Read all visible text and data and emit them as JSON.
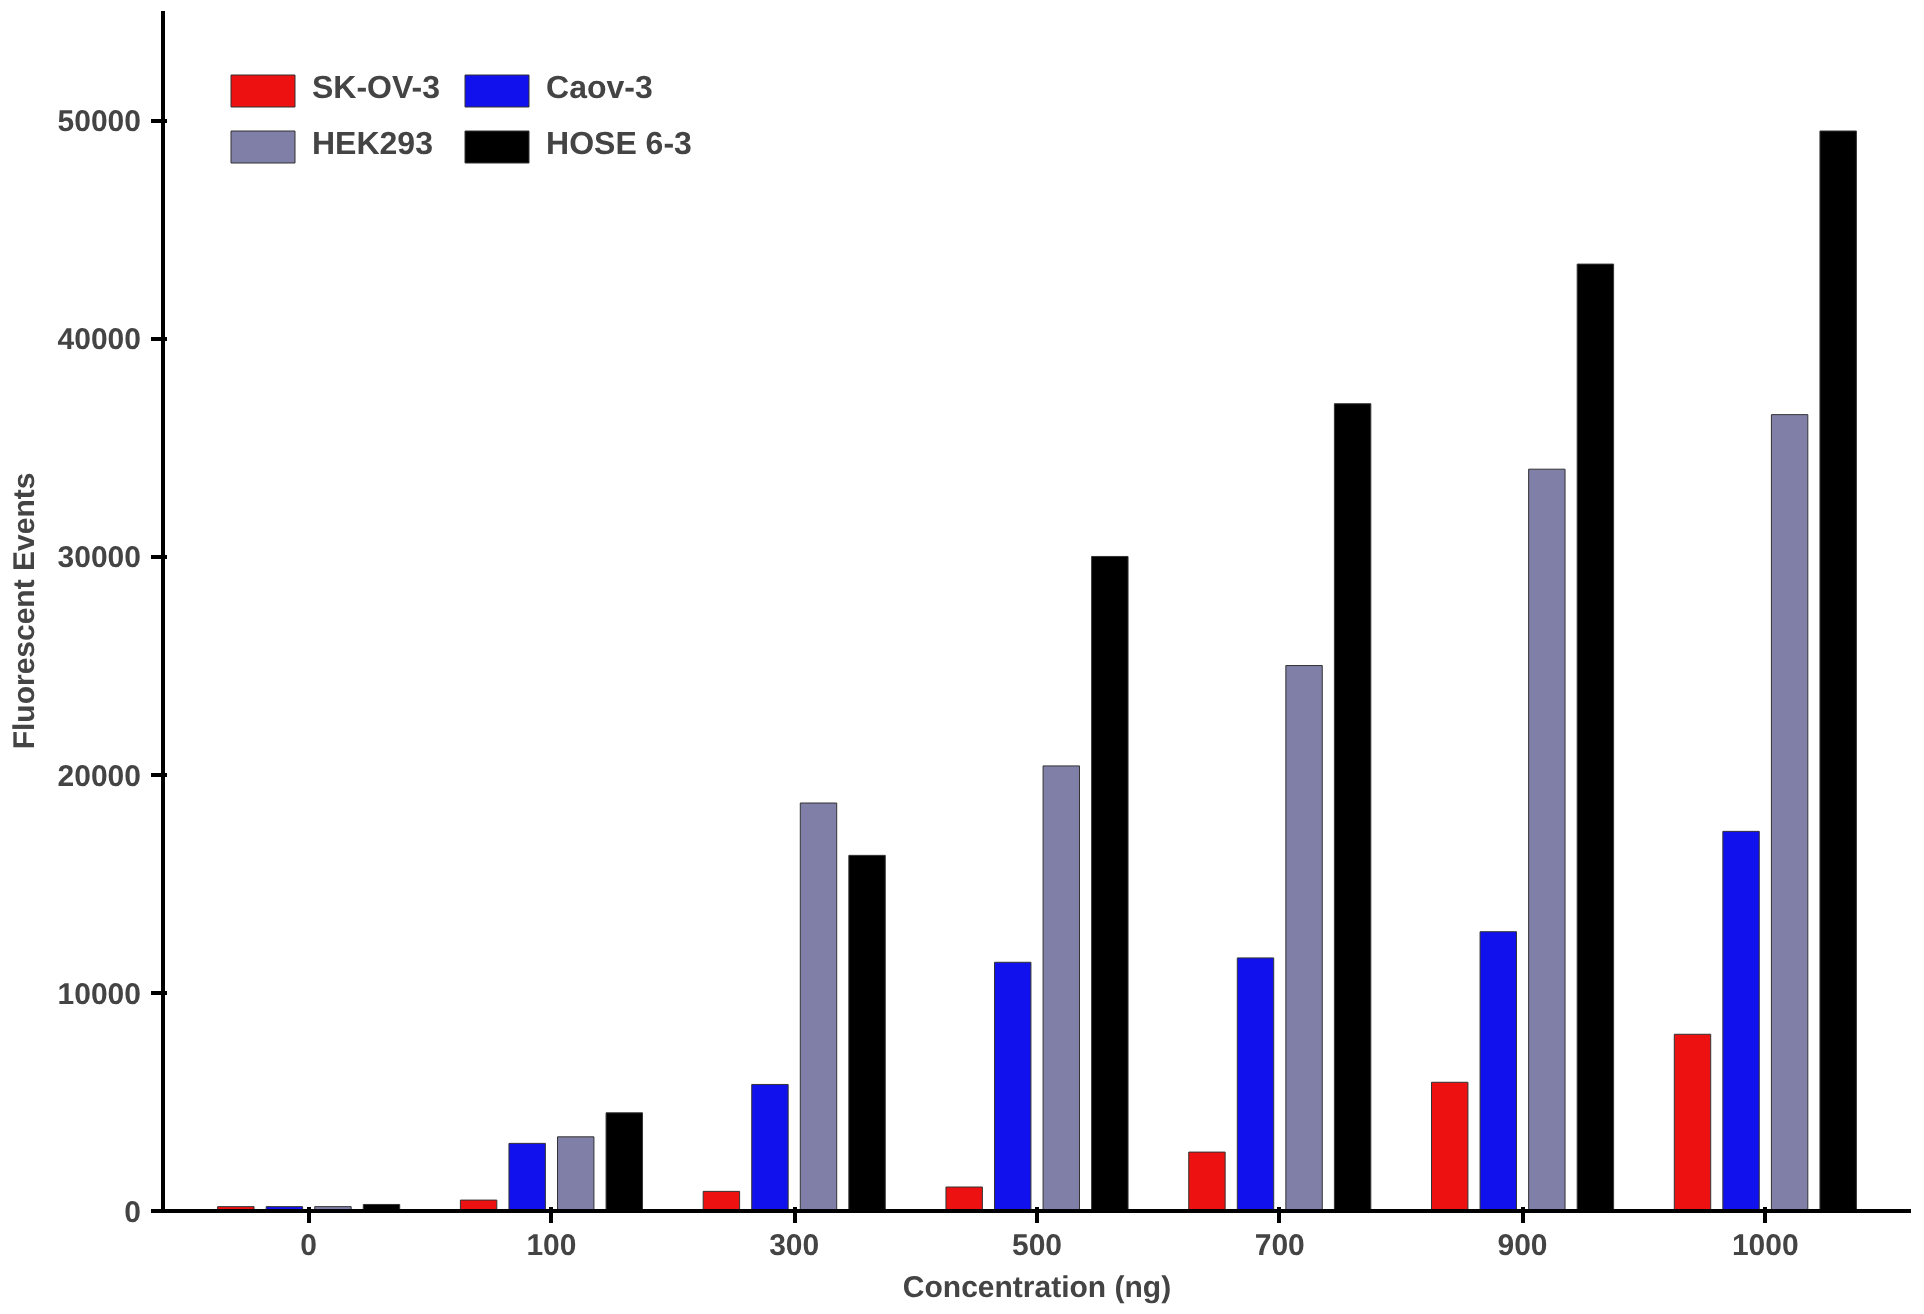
{
  "chart_data": {
    "type": "bar",
    "xlabel": "Concentration (ng)",
    "ylabel": "Fluorescent Events",
    "categories": [
      "0",
      "100",
      "300",
      "500",
      "700",
      "900",
      "1000"
    ],
    "series": [
      {
        "name": "SK-OV-3",
        "color": "#ee1111",
        "values": [
          200,
          500,
          900,
          1100,
          2700,
          5900,
          8100
        ]
      },
      {
        "name": "Caov-3",
        "color": "#1111ee",
        "values": [
          200,
          3100,
          5800,
          11400,
          11600,
          12800,
          17400
        ]
      },
      {
        "name": "HEK293",
        "color": "#7f7fa8",
        "values": [
          200,
          3400,
          18700,
          20400,
          25000,
          34000,
          36500
        ]
      },
      {
        "name": "HOSE 6-3",
        "color": "#000000",
        "values": [
          300,
          4500,
          16300,
          30000,
          37000,
          43400,
          49500
        ]
      }
    ],
    "ylim": [
      0,
      55000
    ],
    "yticks": [
      0,
      10000,
      20000,
      30000,
      40000,
      50000
    ],
    "grid": false,
    "legend": "top left"
  }
}
